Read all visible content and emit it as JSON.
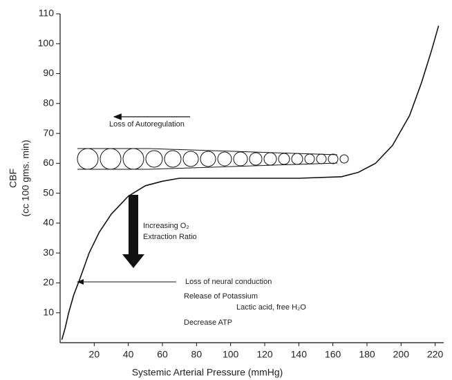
{
  "chart_data": {
    "type": "line",
    "x_label": "Systemic Arterial Pressure (mmHg)",
    "y_label": [
      "CBF",
      "(cc 100 gms. min)"
    ],
    "x": [
      1,
      3,
      5,
      8,
      12,
      17,
      23,
      30,
      40,
      50,
      60,
      70,
      100,
      140,
      165,
      175,
      185,
      195,
      205,
      212,
      218,
      222
    ],
    "series": [
      {
        "name": "CBF",
        "color": "#111111",
        "values": [
          1,
          5,
          10,
          16,
          22,
          30,
          37,
          43,
          49,
          52.5,
          54,
          55,
          55,
          55,
          55.5,
          57,
          60,
          66,
          76,
          87,
          98,
          106
        ]
      }
    ],
    "xlim": [
      0,
      225
    ],
    "ylim": [
      0,
      110
    ],
    "xticks": [
      20,
      40,
      60,
      80,
      100,
      120,
      140,
      160,
      180,
      200,
      220
    ],
    "yticks": [
      10,
      20,
      30,
      40,
      50,
      60,
      70,
      80,
      90,
      100,
      110
    ],
    "annotations": [
      "Loss of Autoregulation",
      "Increasing O₂",
      "Extraction Ratio",
      "Loss of neural conduction",
      "Release of Potassium",
      "Lactic acid, free H₂O",
      "Decrease ATP"
    ]
  }
}
